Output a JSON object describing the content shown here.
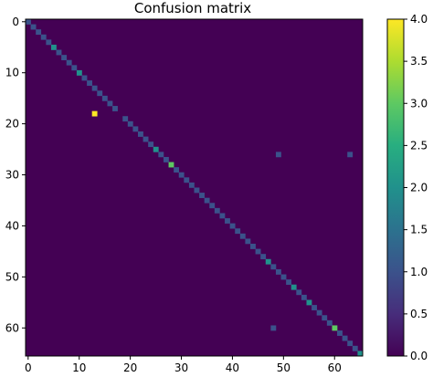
{
  "chart_data": {
    "type": "heatmap",
    "title": "Confusion matrix",
    "xlabel": "",
    "ylabel": "",
    "size": 66,
    "x_ticks": [
      0,
      10,
      20,
      30,
      40,
      50,
      60
    ],
    "y_ticks": [
      0,
      10,
      20,
      30,
      40,
      50,
      60
    ],
    "colorbar": {
      "min": 0.0,
      "max": 4.0,
      "ticks": [
        0.0,
        0.5,
        1.0,
        1.5,
        2.0,
        2.5,
        3.0,
        3.5,
        4.0
      ],
      "tick_labels": [
        "0.0",
        "0.5",
        "1.0",
        "1.5",
        "2.0",
        "2.5",
        "3.0",
        "3.5",
        "4.0"
      ],
      "colormap": "viridis"
    },
    "diagonal": [
      1,
      1,
      1,
      1,
      1,
      2,
      1,
      1,
      1,
      1,
      2,
      1,
      1,
      1,
      1,
      1,
      1,
      1,
      0,
      1,
      1,
      1,
      1,
      1,
      1,
      2,
      1,
      1,
      3,
      1,
      1,
      1,
      1,
      1,
      1,
      1,
      1,
      1,
      1,
      1,
      1,
      1,
      1,
      1,
      1,
      1,
      1,
      2,
      1,
      1,
      1,
      1,
      2,
      1,
      1,
      2,
      1,
      1,
      1,
      1,
      3,
      1,
      1,
      1,
      1,
      2
    ],
    "off_diagonal": [
      {
        "row": 18,
        "col": 13,
        "value": 4
      },
      {
        "row": 26,
        "col": 49,
        "value": 1
      },
      {
        "row": 26,
        "col": 63,
        "value": 1
      },
      {
        "row": 60,
        "col": 48,
        "value": 1
      }
    ]
  }
}
